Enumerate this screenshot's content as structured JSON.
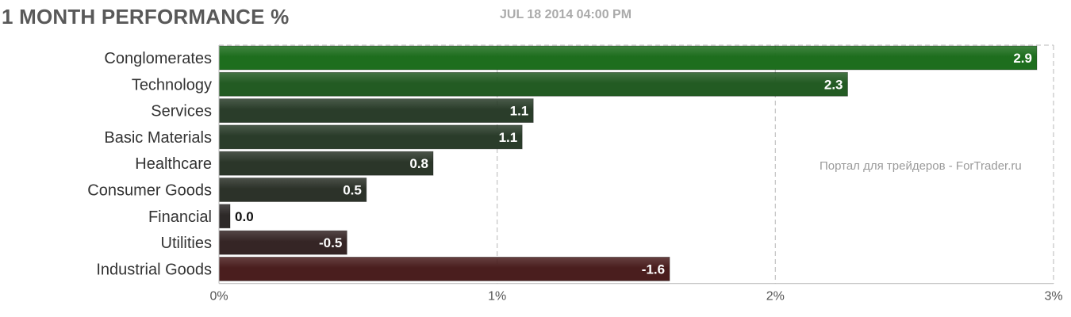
{
  "header": {
    "title": "1 MONTH PERFORMANCE %",
    "timestamp": "JUL 18 2014 04:00 PM"
  },
  "watermark": "Портал для трейдеров - ForTrader.ru",
  "colors": {
    "positive_strong": "#1e6e1e",
    "positive_mid": "#2a3e2a",
    "neutral": "#2d2828",
    "negative_strong": "#4a1e1e",
    "value_text_inside": "#ffffff",
    "value_text_outside": "#111111",
    "grid": "#c8c8c8"
  },
  "chart_data": {
    "type": "bar",
    "orientation": "horizontal",
    "title": "1 MONTH PERFORMANCE %",
    "categories": [
      "Conglomerates",
      "Technology",
      "Services",
      "Basic Materials",
      "Healthcare",
      "Consumer Goods",
      "Financial",
      "Utilities",
      "Industrial Goods"
    ],
    "values": [
      2.94,
      2.26,
      1.13,
      1.09,
      0.77,
      0.53,
      0.04,
      -0.46,
      -1.62
    ],
    "value_labels": [
      "2.9",
      "2.3",
      "1.1",
      "1.1",
      "0.8",
      "0.5",
      "0.0",
      "-0.5",
      "-1.6"
    ],
    "xlim": [
      0,
      3
    ],
    "x_ticks": [
      0,
      1,
      2,
      3
    ],
    "x_tick_labels": [
      "0%",
      "1%",
      "2%",
      "3%"
    ],
    "bar_length": "absolute value",
    "grid": true
  }
}
